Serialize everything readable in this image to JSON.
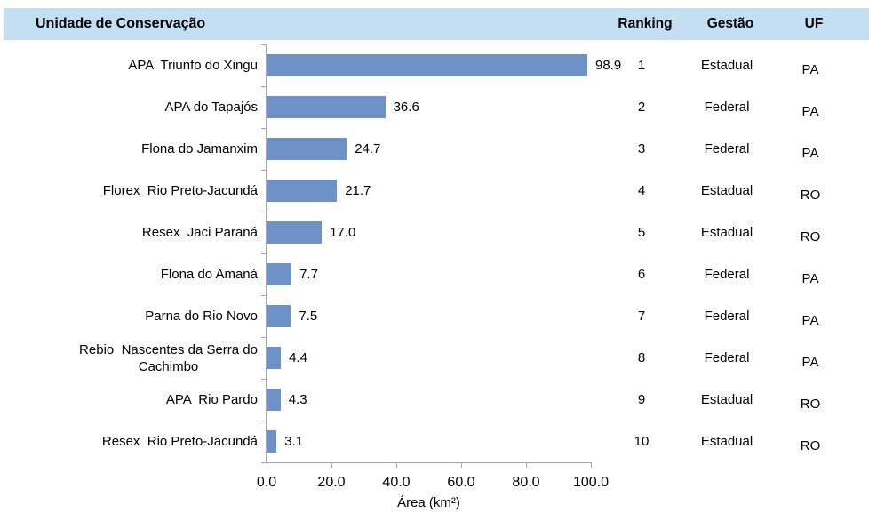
{
  "header": {
    "unit_label": "Unidade de Conservação",
    "ranking_label": "Ranking",
    "gestao_label": "Gestão",
    "uf_label": "UF"
  },
  "colors": {
    "bar": "#6E91C8",
    "header_band": "#C5DFF2",
    "axis": "#A6A6A6"
  },
  "chart_data": {
    "type": "bar",
    "orientation": "horizontal",
    "title": "",
    "xlabel": "Área (km²)",
    "ylabel": "",
    "xlim": [
      0,
      100
    ],
    "x_ticks": [
      "0.0",
      "20.0",
      "40.0",
      "60.0",
      "80.0",
      "100.0"
    ],
    "grid": false,
    "data_labels": true,
    "categories": [
      "APA  Triunfo do Xingu",
      "APA do Tapajós",
      "Flona do Jamanxim",
      "Florex  Rio Preto-Jacundá",
      "Resex  Jaci Paraná",
      "Flona do Amaná",
      "Parna do Rio Novo",
      "Rebio  Nascentes da Serra do Cachimbo",
      "APA  Rio Pardo",
      "Resex  Rio Preto-Jacundá"
    ],
    "values": [
      98.9,
      36.6,
      24.7,
      21.7,
      17.0,
      7.7,
      7.5,
      4.4,
      4.3,
      3.1
    ]
  },
  "rows": [
    {
      "label": "APA  Triunfo do Xingu",
      "area_label": "98.9",
      "ranking": "1",
      "gestao": "Estadual",
      "uf": "PA"
    },
    {
      "label": "APA do Tapajós",
      "area_label": "36.6",
      "ranking": "2",
      "gestao": "Federal",
      "uf": "PA"
    },
    {
      "label": "Flona do Jamanxim",
      "area_label": "24.7",
      "ranking": "3",
      "gestao": "Federal",
      "uf": "PA"
    },
    {
      "label": "Florex  Rio Preto-Jacundá",
      "area_label": "21.7",
      "ranking": "4",
      "gestao": "Estadual",
      "uf": "RO"
    },
    {
      "label": "Resex  Jaci Paraná",
      "area_label": "17.0",
      "ranking": "5",
      "gestao": "Estadual",
      "uf": "RO"
    },
    {
      "label": "Flona do Amaná",
      "area_label": "7.7",
      "ranking": "6",
      "gestao": "Federal",
      "uf": "PA"
    },
    {
      "label": "Parna do Rio Novo",
      "area_label": "7.5",
      "ranking": "7",
      "gestao": "Federal",
      "uf": "PA"
    },
    {
      "label": "Rebio  Nascentes da Serra do\nCachimbo",
      "area_label": "4.4",
      "ranking": "8",
      "gestao": "Federal",
      "uf": "PA"
    },
    {
      "label": "APA  Rio Pardo",
      "area_label": "4.3",
      "ranking": "9",
      "gestao": "Estadual",
      "uf": "RO"
    },
    {
      "label": "Resex  Rio Preto-Jacundá",
      "area_label": "3.1",
      "ranking": "10",
      "gestao": "Estadual",
      "uf": "RO"
    }
  ]
}
